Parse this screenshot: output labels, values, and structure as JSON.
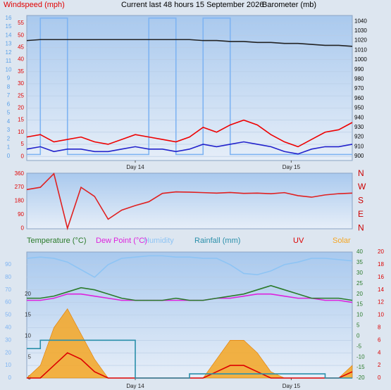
{
  "chart_data": [
    {
      "type": "line",
      "title": "Current last 48 hours 15 September 2026",
      "ylabel": "Windspeed (mph)",
      "y2label": "Barometer (mb)",
      "x": [
        0,
        2,
        4,
        6,
        8,
        10,
        12,
        14,
        16,
        18,
        20,
        22,
        24,
        26,
        28,
        30,
        32,
        34,
        36,
        38,
        40,
        42,
        44,
        46,
        48
      ],
      "xlim": [
        0,
        48
      ],
      "xticks": [
        {
          "value": 16,
          "label": "Day 14"
        },
        {
          "value": 39,
          "label": "Day 15"
        }
      ],
      "ylim": [
        -1.7,
        58.2
      ],
      "yticks": [
        0,
        5,
        10,
        15,
        20,
        25,
        30,
        35,
        40,
        45,
        50,
        55
      ],
      "y2lim": [
        895.6,
        1046
      ],
      "y2ticks": [
        900,
        910,
        920,
        930,
        940,
        950,
        960,
        970,
        980,
        990,
        1000,
        1010,
        1020,
        1030,
        1040
      ],
      "y3lim": [
        -0.5,
        16.3
      ],
      "y3ticks": [
        0,
        1,
        2,
        3,
        4,
        5,
        6,
        7,
        8,
        9,
        10,
        11,
        12,
        13,
        14,
        15,
        16
      ],
      "axis_colors": {
        "y": "#e00000",
        "y2": "#000000",
        "y3": "#5aa0e8"
      },
      "grid": true,
      "series": [
        {
          "color": "#7fb4f2",
          "axis": "y3",
          "style": "step",
          "values": [
            0.2,
            16,
            16,
            0.2,
            0.2,
            0.2,
            0.2,
            0.2,
            0.2,
            16,
            16,
            0.2,
            0.2,
            16,
            16,
            0.2,
            0.2,
            0.2,
            0.2,
            0.2,
            0.2,
            0.2,
            0.2,
            0.2,
            0.2
          ]
        },
        {
          "color": "#ee0000",
          "axis": "y",
          "style": "line",
          "values": [
            8,
            9,
            6,
            7,
            8,
            6,
            5,
            7,
            9,
            8,
            7,
            6,
            8,
            12,
            10,
            13,
            15,
            13,
            9,
            6,
            4,
            7,
            10,
            11,
            14
          ]
        },
        {
          "color": "#2222cc",
          "axis": "y",
          "style": "line",
          "values": [
            3,
            4,
            2,
            3,
            3,
            2,
            2,
            3,
            4,
            3,
            3,
            2,
            3,
            5,
            4,
            5,
            6,
            5,
            4,
            2,
            1,
            3,
            4,
            4,
            5
          ]
        },
        {
          "color": "#222222",
          "axis": "y2",
          "style": "line",
          "values": [
            1020,
            1021,
            1021,
            1021,
            1021,
            1021,
            1021,
            1021,
            1021,
            1021,
            1021,
            1021,
            1021,
            1020,
            1020,
            1019,
            1019,
            1018,
            1018,
            1017,
            1017,
            1016,
            1015,
            1015,
            1014
          ]
        }
      ]
    },
    {
      "type": "line",
      "x": [
        0,
        2,
        4,
        6,
        8,
        10,
        12,
        14,
        16,
        18,
        20,
        22,
        24,
        26,
        28,
        30,
        32,
        34,
        36,
        38,
        40,
        42,
        44,
        46,
        48
      ],
      "xlim": [
        0,
        48
      ],
      "ylim": [
        -3,
        363
      ],
      "yticks": [
        0,
        90,
        180,
        270,
        360
      ],
      "y2lim": [
        -3,
        363
      ],
      "y2ticks": [
        {
          "value": 0,
          "label": "N"
        },
        {
          "value": 90,
          "label": "E"
        },
        {
          "value": 180,
          "label": "S"
        },
        {
          "value": 270,
          "label": "W"
        },
        {
          "value": 360,
          "label": "N"
        }
      ],
      "axis_colors": {
        "y": "#e00000",
        "y2": "#cc0000"
      },
      "grid": false,
      "series": [
        {
          "color": "#e02020",
          "axis": "y",
          "style": "line",
          "values": [
            255,
            270,
            360,
            0,
            270,
            210,
            60,
            120,
            150,
            175,
            230,
            240,
            238,
            235,
            232,
            236,
            230,
            232,
            228,
            235,
            215,
            205,
            220,
            228,
            232
          ]
        }
      ]
    },
    {
      "type": "line",
      "x": [
        0,
        2,
        4,
        6,
        8,
        10,
        12,
        14,
        16,
        18,
        20,
        22,
        24,
        26,
        28,
        30,
        32,
        34,
        36,
        38,
        40,
        42,
        44,
        46,
        48
      ],
      "xlim": [
        0,
        48
      ],
      "xticks": [
        {
          "value": 16,
          "label": "Day 14"
        },
        {
          "value": 39,
          "label": "Day 15"
        }
      ],
      "ylim": [
        0,
        100
      ],
      "yticks": [
        0,
        10,
        20,
        30,
        40,
        50,
        60,
        70,
        80,
        90
      ],
      "y2lim": [
        0,
        30
      ],
      "y2ticks": [
        0,
        5,
        10,
        15,
        20
      ],
      "y3lim": [
        -20,
        40
      ],
      "y3ticks": [
        -20,
        -15,
        -10,
        -5,
        0,
        5,
        10,
        15,
        20,
        25,
        30,
        35,
        40
      ],
      "y4lim": [
        0,
        20
      ],
      "y4ticks": [
        0,
        2,
        4,
        6,
        8,
        10,
        12,
        14,
        16,
        18,
        20
      ],
      "axis_colors": {
        "y": "#7fb4f2",
        "y2": "#333333",
        "y3": "#2a7a2a",
        "y4": "#dd0000"
      },
      "grid": true,
      "series": [
        {
          "name": "Solar",
          "color": "#f5a623",
          "axis": "y4",
          "style": "area",
          "values": [
            0,
            2,
            8,
            11,
            7,
            3,
            0,
            0,
            0,
            0,
            0,
            0,
            0,
            0,
            3,
            6,
            6,
            4,
            1,
            0,
            0,
            0,
            0,
            0,
            2
          ]
        },
        {
          "name": "UV",
          "color": "#dd0000",
          "axis": "y4",
          "style": "line",
          "values": [
            0,
            0,
            2,
            4,
            3,
            1,
            0,
            0,
            0,
            0,
            0,
            0,
            0,
            0,
            1,
            2,
            2,
            1,
            0,
            0,
            0,
            0,
            0,
            0,
            1
          ]
        },
        {
          "name": "Rainfall (mm)",
          "color": "#2a8faa",
          "axis": "y2",
          "style": "step",
          "values": [
            7,
            9,
            9,
            9,
            9,
            9,
            9,
            9,
            0,
            0,
            0,
            0,
            1,
            1,
            1,
            1,
            1,
            1,
            1,
            1,
            1,
            1,
            0,
            0,
            0
          ]
        },
        {
          "name": "Humidity",
          "color": "#8ec4f4",
          "axis": "y",
          "style": "line",
          "values": [
            95,
            96,
            95,
            92,
            86,
            80,
            90,
            95,
            96,
            97,
            97,
            96,
            96,
            95,
            95,
            90,
            83,
            82,
            85,
            90,
            92,
            95,
            95,
            94,
            93
          ]
        },
        {
          "name": "Dew Point (°C)",
          "color": "#dd22dd",
          "axis": "y3",
          "style": "line",
          "values": [
            17,
            17,
            18,
            20,
            20,
            19,
            18,
            17,
            17,
            17,
            17,
            17,
            17,
            17,
            18,
            18,
            19,
            20,
            20,
            19,
            18,
            18,
            17,
            17,
            16
          ]
        },
        {
          "name": "Temperature (°C)",
          "color": "#2a7a2a",
          "axis": "y3",
          "style": "line",
          "values": [
            18,
            18,
            19,
            21,
            23,
            22,
            20,
            18,
            17,
            17,
            17,
            18,
            17,
            17,
            18,
            19,
            20,
            22,
            24,
            22,
            20,
            18,
            18,
            18,
            17
          ]
        }
      ]
    }
  ]
}
